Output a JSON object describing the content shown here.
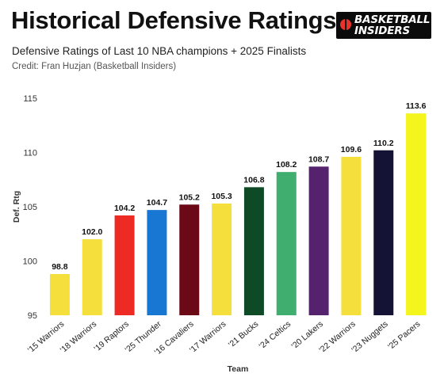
{
  "header": {
    "title": "Historical Defensive Ratings",
    "subtitle": "Defensive Ratings of Last 10 NBA champions + 2025 Finalists",
    "credit": "Credit: Fran Huzjan (Basketball Insiders)",
    "logo_line1": "BASKETBALL",
    "logo_line2": "INSIDERS"
  },
  "chart_data": {
    "type": "bar",
    "title": "Historical Defensive Ratings",
    "xlabel": "Team",
    "ylabel": "Def. Rtg",
    "ylim": [
      95,
      115
    ],
    "yticks": [
      95,
      100,
      105,
      110,
      115
    ],
    "grid": false,
    "categories": [
      "'15 Warriors",
      "'18 Warriors",
      "'19 Raptors",
      "'25 Thunder",
      "'16 Cavaliers",
      "'17 Warriors",
      "'21 Bucks",
      "'24 Celtics",
      "'20 Lakers",
      "'22 Warriors",
      "'23 Nuggets",
      "'25 Pacers"
    ],
    "values": [
      98.8,
      102.0,
      104.2,
      104.7,
      105.2,
      105.3,
      106.8,
      108.2,
      108.7,
      109.6,
      110.2,
      113.6
    ],
    "data_labels": [
      "98.8",
      "102.0",
      "104.2",
      "104.7",
      "105.2",
      "105.3",
      "106.8",
      "108.2",
      "108.7",
      "109.6",
      "110.2",
      "113.6"
    ],
    "colors": [
      "#f5df3c",
      "#f5df3c",
      "#ee2a24",
      "#1877d2",
      "#6b0a16",
      "#f5df3c",
      "#0e4a26",
      "#3fae6e",
      "#55236e",
      "#f5df3c",
      "#141336",
      "#f4f51d"
    ]
  }
}
